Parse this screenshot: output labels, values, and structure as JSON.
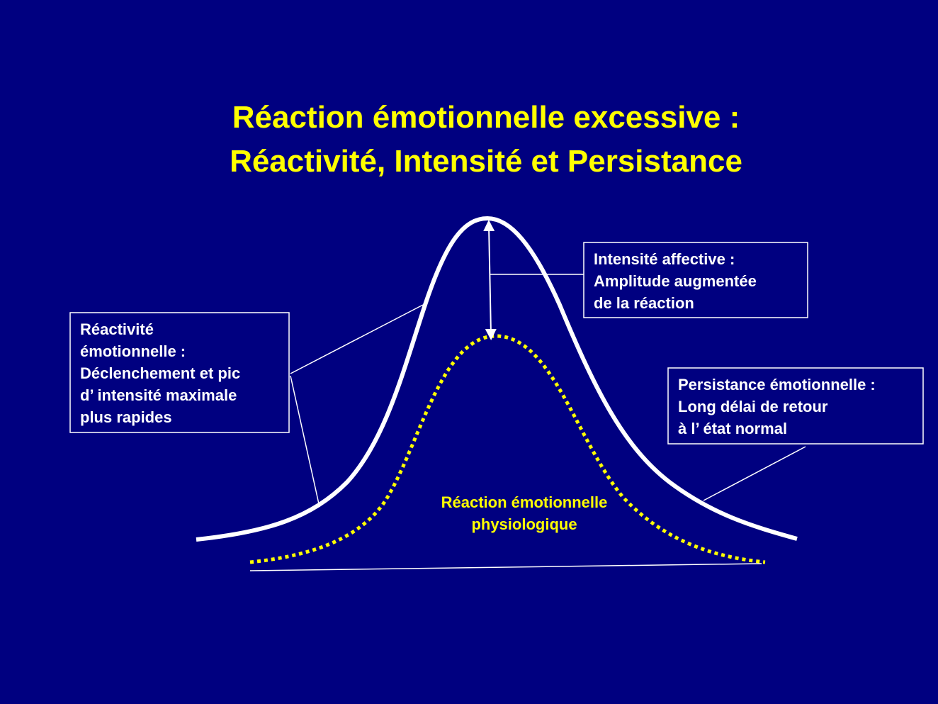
{
  "title": {
    "lines": [
      "Réaction émotionnelle excessive :",
      "Réactivité, Intensité et Persistance"
    ]
  },
  "boxes": [
    {
      "lines": [
        "Réactivité",
        "émotionnelle :",
        "Déclenchement et pic",
        "d’ intensité maximale",
        "plus rapides"
      ]
    },
    {
      "lines": [
        "Intensité affective :",
        "Amplitude augmentée",
        "de la réaction"
      ]
    },
    {
      "lines": [
        "Persistance émotionnelle :",
        "Long délai de retour",
        "à l’ état normal"
      ]
    }
  ],
  "curve_label": {
    "lines": [
      "Réaction émotionnelle",
      "physiologique"
    ]
  }
}
